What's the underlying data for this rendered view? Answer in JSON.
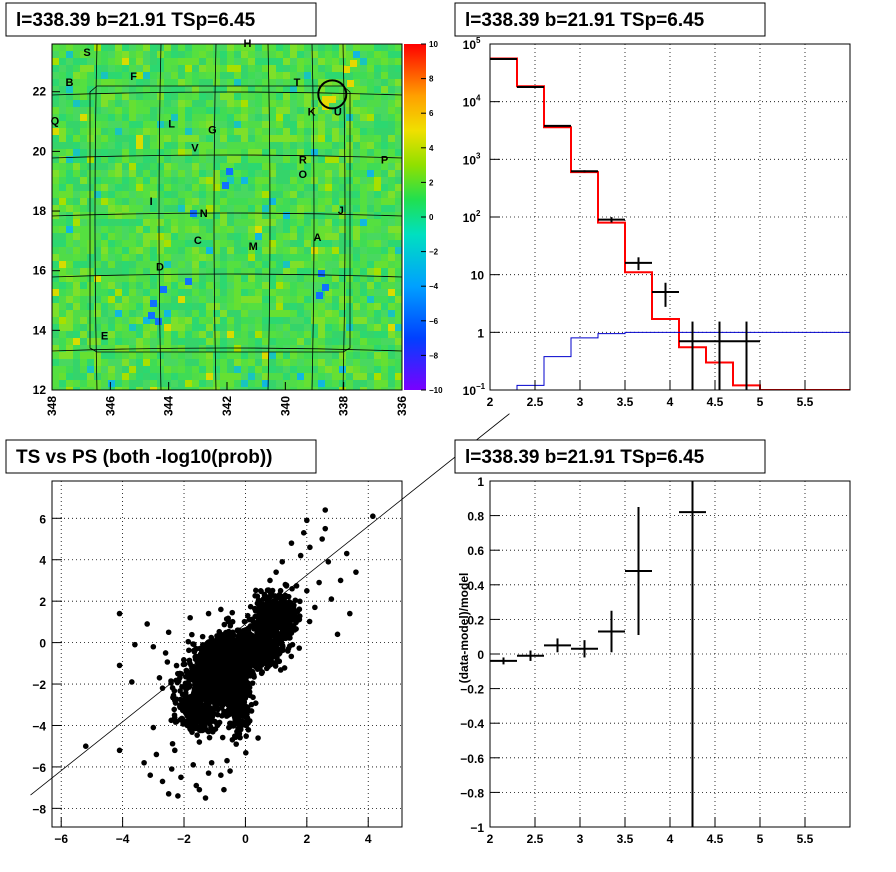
{
  "panels": {
    "map_title": "l=338.39 b=21.91 TSp=6.45",
    "hist_title": "l=338.39 b=21.91 TSp=6.45",
    "scatter_title": "TS vs PS (both -log10(prob))",
    "resid_title": "l=338.39 b=21.91 TSp=6.45"
  },
  "chart_data": [
    {
      "type": "heatmap",
      "title": "l=338.39 b=21.91 TSp=6.45",
      "xlim": [
        348,
        336
      ],
      "ylim": [
        12,
        23.6
      ],
      "x_ticks": [
        "348",
        "346",
        "344",
        "342",
        "340",
        "338",
        "336"
      ],
      "y_ticks": [
        "12",
        "14",
        "16",
        "18",
        "20",
        "22"
      ],
      "colorbar": {
        "range": [
          -10,
          10
        ],
        "ticks": [
          "10",
          "8",
          "6",
          "4",
          "2",
          "0",
          "−2",
          "−4",
          "−6",
          "−8",
          "−10"
        ]
      },
      "grid": true,
      "region_labels": [
        {
          "label": "S",
          "l": 346.8,
          "b": 23.2
        },
        {
          "label": "H",
          "l": 341.3,
          "b": 23.5
        },
        {
          "label": "F",
          "l": 345.2,
          "b": 22.4
        },
        {
          "label": "B",
          "l": 347.4,
          "b": 22.2
        },
        {
          "label": "T",
          "l": 339.6,
          "b": 22.2
        },
        {
          "label": "K",
          "l": 339.1,
          "b": 21.2
        },
        {
          "label": "U",
          "l": 338.2,
          "b": 21.2
        },
        {
          "label": "Q",
          "l": 347.9,
          "b": 20.9
        },
        {
          "label": "L",
          "l": 343.9,
          "b": 20.8
        },
        {
          "label": "G",
          "l": 342.5,
          "b": 20.6
        },
        {
          "label": "V",
          "l": 343.1,
          "b": 20.0
        },
        {
          "label": "R",
          "l": 339.4,
          "b": 19.6
        },
        {
          "label": "P",
          "l": 336.6,
          "b": 19.6
        },
        {
          "label": "O",
          "l": 339.4,
          "b": 19.1
        },
        {
          "label": "I",
          "l": 344.6,
          "b": 18.2
        },
        {
          "label": "J",
          "l": 338.1,
          "b": 17.9
        },
        {
          "label": "N",
          "l": 342.8,
          "b": 17.8
        },
        {
          "label": "A",
          "l": 338.9,
          "b": 17.0
        },
        {
          "label": "C",
          "l": 343.0,
          "b": 16.9
        },
        {
          "label": "M",
          "l": 341.1,
          "b": 16.7
        },
        {
          "label": "D",
          "l": 344.3,
          "b": 16.0
        },
        {
          "label": "E",
          "l": 346.2,
          "b": 13.7
        }
      ],
      "marked_source": {
        "l": 338.39,
        "b": 21.91
      }
    },
    {
      "type": "line",
      "title": "l=338.39 b=21.91 TSp=6.45",
      "log_y": true,
      "xlim": [
        2,
        6
      ],
      "ylim": [
        0.1,
        100000
      ],
      "x_ticks": [
        "2",
        "2.5",
        "3",
        "3.5",
        "4",
        "4.5",
        "5",
        "5.5"
      ],
      "y_ticks": [
        {
          "v": 0.1,
          "m": "10",
          "e": "−1"
        },
        {
          "v": 1,
          "m": "1",
          "e": ""
        },
        {
          "v": 10,
          "m": "10",
          "e": ""
        },
        {
          "v": 100,
          "m": "10",
          "e": "2"
        },
        {
          "v": 1000,
          "m": "10",
          "e": "3"
        },
        {
          "v": 10000,
          "m": "10",
          "e": "4"
        },
        {
          "v": 100000,
          "m": "10",
          "e": "5"
        }
      ],
      "grid": true,
      "bin_edges": [
        2.0,
        2.3,
        2.6,
        2.9,
        3.2,
        3.5,
        3.8,
        4.1,
        4.4,
        4.7,
        5.0,
        6.0
      ],
      "series": [
        {
          "color": "#000000",
          "values": [
            55000,
            18000,
            3800,
            620,
            90,
            16,
            5,
            0.7,
            0.7,
            0.7
          ]
        },
        {
          "color": "#ff0000",
          "values": [
            56000,
            18500,
            3600,
            600,
            80,
            11,
            1.7,
            0.55,
            0.3,
            0.12,
            0.1
          ]
        },
        {
          "color": "#0000cc",
          "values": [
            0.08,
            0.12,
            0.38,
            0.8,
            0.95,
            1.0,
            1.0,
            1.0,
            1.0,
            1.0,
            1.0
          ]
        }
      ]
    },
    {
      "type": "scatter",
      "title": "TS vs PS (both -log10(prob))",
      "xlim": [
        -6.3,
        5.1
      ],
      "ylim": [
        -8.9,
        7.8
      ],
      "x_ticks": [
        "−6",
        "−4",
        "−2",
        "0",
        "2",
        "4"
      ],
      "y_ticks": [
        "−8",
        "−6",
        "−4",
        "−2",
        "0",
        "2",
        "4",
        "6"
      ],
      "grid": true,
      "fit_line": {
        "slope": 1.18,
        "intercept": 0.9
      },
      "points": [
        [
          4.15,
          6.1
        ],
        [
          2.6,
          6.4
        ],
        [
          2.0,
          5.9
        ],
        [
          2.6,
          5.5
        ],
        [
          1.9,
          5.3
        ],
        [
          2.5,
          5.0
        ],
        [
          3.3,
          4.3
        ],
        [
          3.6,
          3.4
        ],
        [
          2.7,
          3.9
        ],
        [
          3.1,
          3.0
        ],
        [
          1.5,
          4.8
        ],
        [
          1.8,
          4.2
        ],
        [
          2.1,
          4.6
        ],
        [
          1.2,
          3.9
        ],
        [
          2.8,
          2.1
        ],
        [
          3.4,
          1.4
        ],
        [
          3.0,
          0.4
        ],
        [
          1.5,
          1.3
        ],
        [
          1.0,
          2.2
        ],
        [
          2.0,
          2.5
        ],
        [
          -4.1,
          1.4
        ],
        [
          -3.6,
          -0.1
        ],
        [
          -4.1,
          -1.1
        ],
        [
          -3.7,
          -1.9
        ],
        [
          -5.2,
          -5.0
        ],
        [
          -4.1,
          -5.2
        ],
        [
          -3.3,
          -5.8
        ],
        [
          -3.0,
          -4.1
        ],
        [
          -2.7,
          -6.7
        ],
        [
          -2.5,
          -7.3
        ],
        [
          -2.2,
          -7.4
        ],
        [
          -1.6,
          -6.9
        ],
        [
          -1.3,
          -7.5
        ],
        [
          -1.5,
          -7.1
        ],
        [
          -0.7,
          -7.1
        ],
        [
          -0.5,
          -6.2
        ],
        [
          -0.8,
          -6.4
        ],
        [
          -1.7,
          -5.9
        ],
        [
          -2.4,
          -6.1
        ],
        [
          -3.1,
          -6.4
        ],
        [
          -2.1,
          -6.5
        ],
        [
          -1.2,
          -6.3
        ],
        [
          -0.1,
          -3.8
        ],
        [
          0.2,
          -3.3
        ],
        [
          -0.6,
          -5.7
        ],
        [
          -0.3,
          -4.9
        ],
        [
          -2.9,
          -5.4
        ],
        [
          -2.3,
          -5.2
        ],
        [
          -1.1,
          -5.8
        ],
        [
          -2.7,
          -2.2
        ],
        [
          -2.8,
          -1.7
        ],
        [
          -2.6,
          -0.5
        ],
        [
          -2.5,
          0.5
        ],
        [
          -3.2,
          0.9
        ],
        [
          -3.0,
          -0.2
        ],
        [
          -1.8,
          1.2
        ],
        [
          -1.2,
          1.4
        ],
        [
          -0.8,
          1.6
        ],
        [
          0.5,
          2.5
        ],
        [
          0.8,
          3.0
        ],
        [
          -1.9,
          -3.5
        ],
        [
          -1.2,
          -4.3
        ],
        [
          -1.5,
          -4.8
        ],
        [
          0.6,
          1.4
        ],
        [
          1.3,
          2.8
        ],
        [
          1.0,
          3.4
        ],
        [
          2.4,
          2.9
        ]
      ],
      "clusters": [
        {
          "cx": -1.0,
          "cy": -1.5,
          "sx": 0.85,
          "sy": 1.3,
          "n": 900
        },
        {
          "cx": 0.2,
          "cy": -0.3,
          "sx": 0.9,
          "sy": 0.95,
          "n": 900
        },
        {
          "cx": 1.0,
          "cy": 1.3,
          "sx": 0.6,
          "sy": 0.9,
          "n": 500
        },
        {
          "cx": -0.2,
          "cy": -2.6,
          "sx": 0.35,
          "sy": 1.6,
          "n": 320
        },
        {
          "cx": -1.5,
          "cy": -3.2,
          "sx": 0.7,
          "sy": 1.1,
          "n": 260
        }
      ]
    },
    {
      "type": "scatter",
      "title": "l=338.39 b=21.91 TSp=6.45",
      "ylabel": "(data-model)/model",
      "xlim": [
        2,
        6
      ],
      "ylim": [
        -1,
        1
      ],
      "x_ticks": [
        "2",
        "2.5",
        "3",
        "3.5",
        "4",
        "4.5",
        "5",
        "5.5"
      ],
      "y_ticks": [
        "−1",
        "−0.8",
        "−0.6",
        "−0.4",
        "−0.2",
        "0",
        "0.2",
        "0.4",
        "0.6",
        "0.8",
        "1"
      ],
      "grid": true,
      "points": [
        {
          "x": 2.15,
          "xerr": 0.15,
          "y": -0.04,
          "yerr": 0.02
        },
        {
          "x": 2.45,
          "xerr": 0.15,
          "y": -0.01,
          "yerr": 0.03
        },
        {
          "x": 2.75,
          "xerr": 0.15,
          "y": 0.05,
          "yerr": 0.04
        },
        {
          "x": 3.05,
          "xerr": 0.15,
          "y": 0.03,
          "yerr": 0.05
        },
        {
          "x": 3.35,
          "xerr": 0.15,
          "y": 0.13,
          "yerr": 0.12
        },
        {
          "x": 3.65,
          "xerr": 0.15,
          "y": 0.48,
          "yerr": 0.37
        },
        {
          "x": 4.25,
          "xerr": 0.15,
          "y": 0.82,
          "yerr": 1.9
        }
      ]
    }
  ]
}
